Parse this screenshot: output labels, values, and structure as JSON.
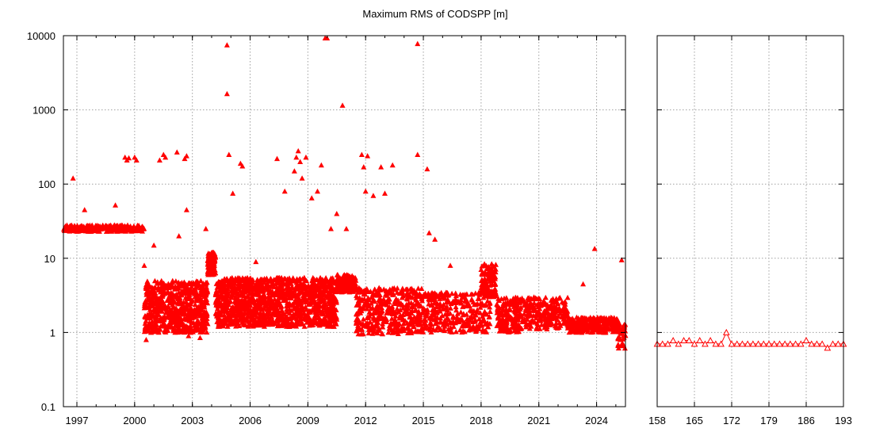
{
  "chart_data": [
    {
      "id": "history",
      "type": "scatter",
      "title": "Maximum RMS of CODSPP [m]",
      "xlabel": "",
      "ylabel": "",
      "yscale": "log",
      "xlim": [
        1996.3,
        2025.5
      ],
      "ylim": [
        0.1,
        10000
      ],
      "xticks": [
        "1997",
        "2000",
        "2003",
        "2006",
        "2009",
        "2012",
        "2015",
        "2018",
        "2021",
        "2024"
      ],
      "yticks": [
        "0.1",
        "1",
        "10",
        "100",
        "1000",
        "10000"
      ],
      "grid": true,
      "marker": "filled-triangle",
      "color": "#ff0000",
      "segments": [
        {
          "x_start": 1996.3,
          "x_end": 2000.5,
          "y_low": 23,
          "y_high": 28,
          "count": 260
        },
        {
          "x_start": 2000.5,
          "x_end": 2003.8,
          "y_low": 1.0,
          "y_high": 5.0,
          "count": 700
        },
        {
          "x_start": 2003.8,
          "x_end": 2004.2,
          "y_low": 6.0,
          "y_high": 12.0,
          "count": 140
        },
        {
          "x_start": 2004.2,
          "x_end": 2010.5,
          "y_low": 1.2,
          "y_high": 5.5,
          "count": 1300
        },
        {
          "x_start": 2010.5,
          "x_end": 2011.5,
          "y_low": 3.5,
          "y_high": 6.0,
          "count": 160
        },
        {
          "x_start": 2011.5,
          "x_end": 2015.0,
          "y_low": 0.95,
          "y_high": 4.0,
          "count": 420
        },
        {
          "x_start": 2015.0,
          "x_end": 2018.5,
          "y_low": 1.0,
          "y_high": 3.5,
          "count": 300
        },
        {
          "x_start": 2018.0,
          "x_end": 2018.8,
          "y_low": 3.0,
          "y_high": 8.5,
          "count": 120
        },
        {
          "x_start": 2018.8,
          "x_end": 2020.0,
          "y_low": 1.0,
          "y_high": 3.0,
          "count": 160
        },
        {
          "x_start": 2020.0,
          "x_end": 2022.5,
          "y_low": 1.1,
          "y_high": 3.0,
          "count": 240
        },
        {
          "x_start": 2022.5,
          "x_end": 2025.1,
          "y_low": 1.0,
          "y_high": 1.6,
          "count": 280
        },
        {
          "x_start": 2025.1,
          "x_end": 2025.5,
          "y_low": 0.6,
          "y_high": 1.3,
          "count": 40
        }
      ],
      "points": [
        [
          1996.8,
          120
        ],
        [
          1997.4,
          45
        ],
        [
          1999.0,
          52
        ],
        [
          1999.5,
          230
        ],
        [
          1999.6,
          210
        ],
        [
          1999.7,
          225
        ],
        [
          2000.0,
          230
        ],
        [
          2000.1,
          210
        ],
        [
          2000.5,
          8
        ],
        [
          2000.6,
          0.8
        ],
        [
          2001.0,
          15
        ],
        [
          2001.3,
          210
        ],
        [
          2001.5,
          250
        ],
        [
          2001.6,
          230
        ],
        [
          2002.2,
          270
        ],
        [
          2002.3,
          20
        ],
        [
          2002.6,
          220
        ],
        [
          2002.7,
          240
        ],
        [
          2002.7,
          45
        ],
        [
          2002.8,
          0.9
        ],
        [
          2003.4,
          0.85
        ],
        [
          2003.7,
          25
        ],
        [
          2004.8,
          7500
        ],
        [
          2004.8,
          1650
        ],
        [
          2004.9,
          250
        ],
        [
          2005.1,
          75
        ],
        [
          2005.5,
          190
        ],
        [
          2005.6,
          175
        ],
        [
          2006.3,
          9
        ],
        [
          2007.4,
          220
        ],
        [
          2007.8,
          80
        ],
        [
          2008.3,
          150
        ],
        [
          2008.4,
          230
        ],
        [
          2008.5,
          280
        ],
        [
          2008.6,
          200
        ],
        [
          2008.7,
          120
        ],
        [
          2008.9,
          230
        ],
        [
          2009.2,
          65
        ],
        [
          2009.5,
          80
        ],
        [
          2009.7,
          180
        ],
        [
          2009.9,
          10000
        ],
        [
          2010.0,
          10000
        ],
        [
          2010.2,
          25
        ],
        [
          2010.5,
          40
        ],
        [
          2010.8,
          1150
        ],
        [
          2011.0,
          25
        ],
        [
          2011.8,
          250
        ],
        [
          2011.9,
          170
        ],
        [
          2012.0,
          80
        ],
        [
          2012.1,
          240
        ],
        [
          2012.4,
          70
        ],
        [
          2012.8,
          170
        ],
        [
          2013.0,
          75
        ],
        [
          2013.4,
          180
        ],
        [
          2014.7,
          7800
        ],
        [
          2014.7,
          250
        ],
        [
          2015.2,
          160
        ],
        [
          2015.3,
          22
        ],
        [
          2015.6,
          18
        ],
        [
          2016.4,
          8
        ],
        [
          2018.4,
          7.5
        ],
        [
          2023.3,
          4.5
        ],
        [
          2023.9,
          13.5
        ],
        [
          2025.3,
          9.5
        ]
      ]
    },
    {
      "id": "recent",
      "type": "line",
      "title": "",
      "yscale": "log",
      "xlim": [
        158,
        193
      ],
      "ylim": [
        0.1,
        10000
      ],
      "xticks": [
        "158",
        "165",
        "172",
        "179",
        "186",
        "193"
      ],
      "grid": true,
      "marker": "open-triangle",
      "color": "#ff0000",
      "x": [
        158,
        159,
        160,
        161,
        162,
        163,
        164,
        165,
        166,
        167,
        168,
        169,
        170,
        171,
        172,
        173,
        174,
        175,
        176,
        177,
        178,
        179,
        180,
        181,
        182,
        183,
        184,
        185,
        186,
        187,
        188,
        189,
        190,
        191,
        192,
        193
      ],
      "y": [
        0.7,
        0.7,
        0.7,
        0.78,
        0.7,
        0.78,
        0.78,
        0.7,
        0.78,
        0.7,
        0.78,
        0.7,
        0.7,
        1.0,
        0.7,
        0.7,
        0.7,
        0.7,
        0.7,
        0.7,
        0.7,
        0.7,
        0.7,
        0.7,
        0.7,
        0.7,
        0.7,
        0.7,
        0.78,
        0.7,
        0.7,
        0.7,
        0.62,
        0.7,
        0.7,
        0.7
      ]
    }
  ]
}
